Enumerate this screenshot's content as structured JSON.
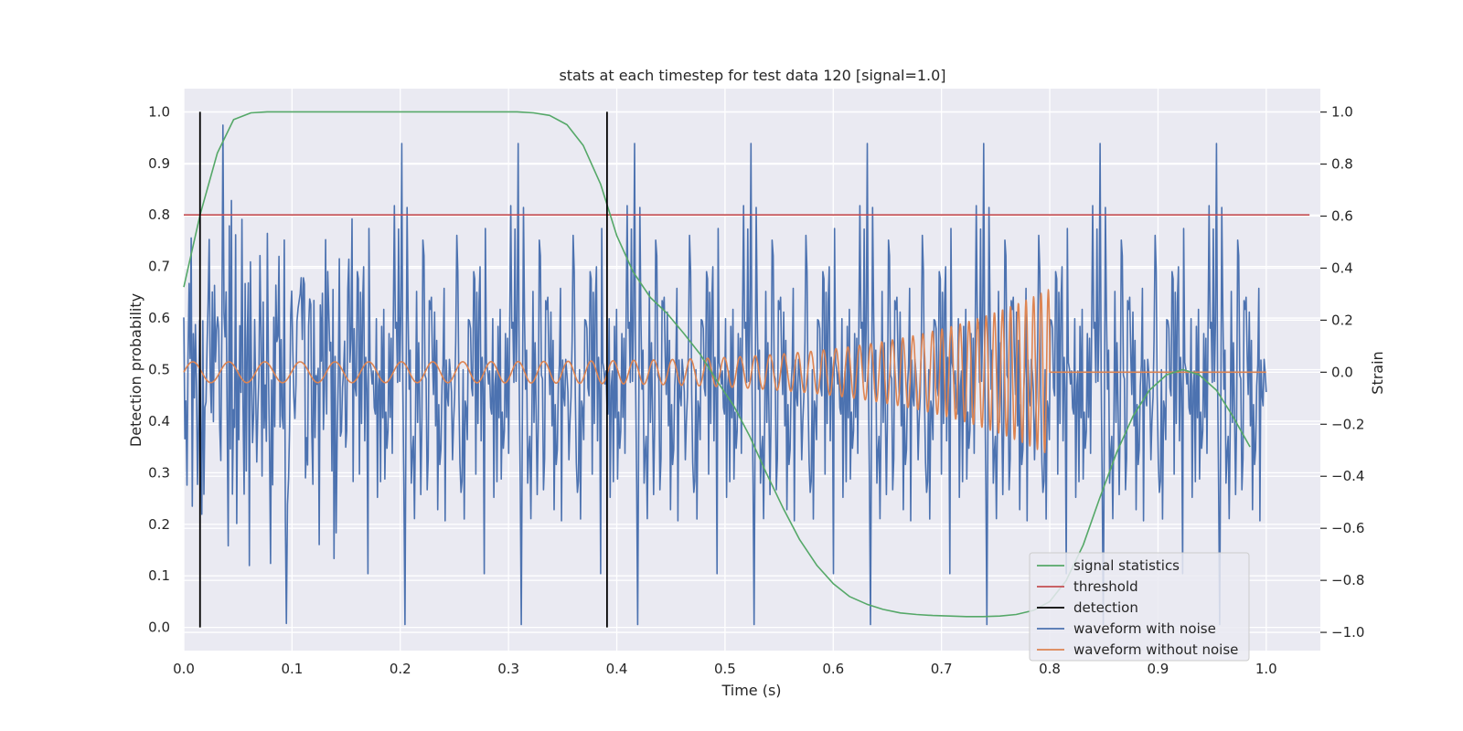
{
  "chart_data": {
    "type": "line",
    "title": "stats at each timestep for test data 120 [signal=1.0]",
    "xlabel": "Time (s)",
    "ylabel": "Detection probability",
    "ylabel_right": "Strain",
    "xlim": [
      0.0,
      1.05
    ],
    "ylim": [
      -0.045,
      1.045
    ],
    "ylim_right": [
      -1.07,
      1.09
    ],
    "x_ticks": [
      0.0,
      0.1,
      0.2,
      0.3,
      0.4,
      0.5,
      0.6,
      0.7,
      0.8,
      0.9,
      1.0
    ],
    "x_tick_labels": [
      "0.0",
      "0.1",
      "0.2",
      "0.3",
      "0.4",
      "0.5",
      "0.6",
      "0.7",
      "0.8",
      "0.9",
      "1.0"
    ],
    "y_ticks": [
      0.0,
      0.1,
      0.2,
      0.3,
      0.4,
      0.5,
      0.6,
      0.7,
      0.8,
      0.9,
      1.0
    ],
    "y_tick_labels": [
      "0.0",
      "0.1",
      "0.2",
      "0.3",
      "0.4",
      "0.5",
      "0.6",
      "0.7",
      "0.8",
      "0.9",
      "1.0"
    ],
    "y2_ticks": [
      -1.0,
      -0.8,
      -0.6,
      -0.4,
      -0.2,
      0.0,
      0.2,
      0.4,
      0.6,
      0.8,
      1.0
    ],
    "y2_tick_labels": [
      "−1.0",
      "−0.8",
      "−0.6",
      "−0.4",
      "−0.2",
      "0.0",
      "0.2",
      "0.4",
      "0.6",
      "0.8",
      "1.0"
    ],
    "grid": true,
    "legend_position": "lower-right",
    "series": [
      {
        "name": "signal statistics",
        "color": "#55a868",
        "axis": "left",
        "x": [
          0.0,
          0.015,
          0.031,
          0.046,
          0.062,
          0.077,
          0.092,
          0.108,
          0.123,
          0.138,
          0.154,
          0.169,
          0.185,
          0.2,
          0.215,
          0.231,
          0.246,
          0.262,
          0.277,
          0.292,
          0.308,
          0.323,
          0.338,
          0.354,
          0.369,
          0.385,
          0.4,
          0.415,
          0.431,
          0.446,
          0.462,
          0.477,
          0.492,
          0.508,
          0.523,
          0.538,
          0.554,
          0.569,
          0.585,
          0.6,
          0.615,
          0.631,
          0.646,
          0.662,
          0.677,
          0.692,
          0.708,
          0.723,
          0.738,
          0.754,
          0.769,
          0.785,
          0.8,
          0.815,
          0.831,
          0.846,
          0.862,
          0.877,
          0.892,
          0.908,
          0.923,
          0.938,
          0.954,
          0.969,
          0.985
        ],
        "y": [
          0.66,
          0.8,
          0.92,
          0.985,
          0.998,
          1.0,
          1.0,
          1.0,
          1.0,
          1.0,
          1.0,
          1.0,
          1.0,
          1.0,
          1.0,
          1.0,
          1.0,
          1.0,
          1.0,
          1.0,
          1.0,
          0.998,
          0.993,
          0.975,
          0.935,
          0.86,
          0.76,
          0.69,
          0.64,
          0.61,
          0.57,
          0.53,
          0.48,
          0.43,
          0.37,
          0.3,
          0.23,
          0.17,
          0.12,
          0.085,
          0.06,
          0.045,
          0.035,
          0.028,
          0.025,
          0.023,
          0.022,
          0.021,
          0.021,
          0.022,
          0.025,
          0.033,
          0.05,
          0.09,
          0.16,
          0.25,
          0.34,
          0.41,
          0.46,
          0.49,
          0.5,
          0.49,
          0.46,
          0.41,
          0.35
        ]
      },
      {
        "name": "threshold",
        "color": "#c44e52",
        "axis": "left",
        "x": [
          0.0,
          1.04
        ],
        "y": [
          0.8,
          0.8
        ]
      },
      {
        "name": "detection",
        "color": "#000000",
        "axis": "left",
        "vertical_lines_x": [
          0.015,
          0.391
        ],
        "y_range": [
          0.0,
          1.0
        ]
      },
      {
        "name": "waveform with noise",
        "color": "#4c72b0",
        "axis": "right",
        "x_range": [
          0.0,
          1.0
        ],
        "n_points": 1024,
        "std": 0.33,
        "min": -0.97,
        "max": 1.0
      },
      {
        "name": "waveform without noise",
        "color": "#dd8452",
        "axis": "right",
        "chirp_end": 0.8,
        "start_frequency_hz": 30,
        "end_frequency_hz": 150,
        "start_amplitude": 0.04,
        "end_amplitude": 0.32,
        "x_end": 1.0
      }
    ]
  }
}
